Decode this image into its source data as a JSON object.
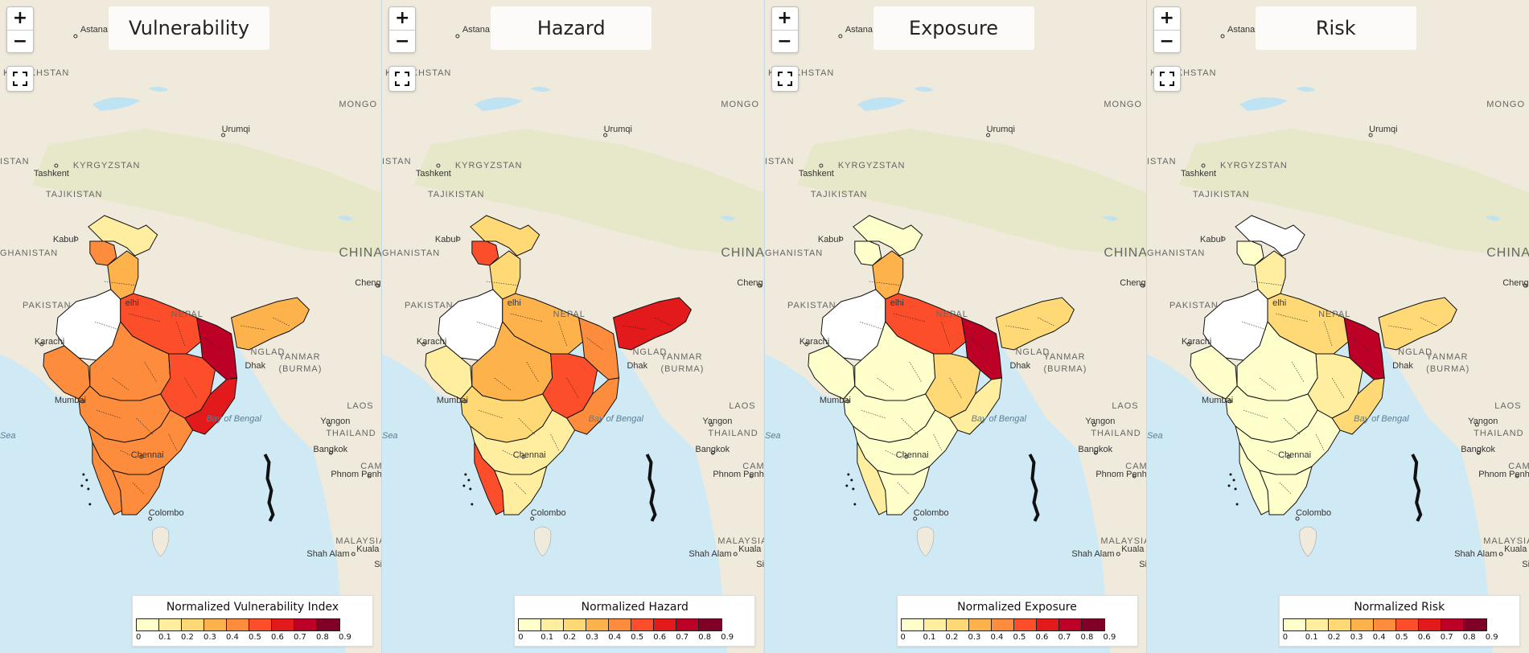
{
  "colors": {
    "land": "#efebd6",
    "land_dark": "#e1e4c8",
    "water": "#cfe9f5",
    "border": "#111111"
  },
  "legend_ticks": [
    "0",
    "0.1",
    "0.2",
    "0.3",
    "0.4",
    "0.5",
    "0.6",
    "0.7",
    "0.8",
    "0.9"
  ],
  "legend_colors": [
    "#ffffcc",
    "#ffeda0",
    "#fed976",
    "#feb24c",
    "#fd8d3c",
    "#fc4e2a",
    "#e31a1c",
    "#bd0026",
    "#800026"
  ],
  "zoom_in_label": "+",
  "zoom_out_label": "−",
  "places": {
    "astana": "Astana",
    "kazakhstan": "KAZAKHSTAN",
    "mongolia": "MONGO",
    "urumqi": "Urumqi",
    "istan": "ISTAN",
    "kyrgyzstan": "KYRGYZSTAN",
    "tashkent": "Tashkent",
    "tajikistan": "TAJIKISTAN",
    "kabul": "Kabul",
    "afghanistan": "GHANISTAN",
    "china": "CHINA",
    "pakistan": "PAKISTAN",
    "chengdu": "Cheng",
    "delhi": "elhi",
    "nepal": "NEPAL",
    "karachi": "Karachi",
    "bangladesh": "NGLAD",
    "dhaka": "Dhak",
    "myanmar1": "YANMAR",
    "myanmar2": "(BURMA)",
    "laos": "LAOS",
    "mumbai": "Mumbai",
    "bay_of_bengal": "Bay of Bengal",
    "yangon": "Yangon",
    "thailand": "THAILAND",
    "sea": "Sea",
    "chennai": "Chennai",
    "bangkok": "Bangkok",
    "cambodia": "CAMB",
    "phnom_penh": "Phnom Penh",
    "colombo": "Colombo",
    "malaysia": "MALAYSIA",
    "shah_alam": "Shah Alam",
    "kuala": "Kuala",
    "si": "Si"
  },
  "panels": [
    {
      "title": "Vulnerability",
      "legend_title": "Normalized Vulnerability Index",
      "regions": {
        "north": 2,
        "kashmir": 5,
        "punjab": 4,
        "rajasthan": 0,
        "gujarat": 5,
        "up": 6,
        "bihar": 8,
        "northeast": 4,
        "mp": 5,
        "maharashtra": 5,
        "east": 6,
        "odisha": 7,
        "south": 5,
        "kerala": 5,
        "tamil": 5
      }
    },
    {
      "title": "Hazard",
      "legend_title": "Normalized Hazard",
      "regions": {
        "north": 3,
        "kashmir": 6,
        "punjab": 3,
        "rajasthan": 0,
        "gujarat": 2,
        "up": 4,
        "bihar": 5,
        "northeast": 7,
        "mp": 4,
        "maharashtra": 3,
        "east": 6,
        "odisha": 5,
        "south": 2,
        "kerala": 6,
        "tamil": 2
      }
    },
    {
      "title": "Exposure",
      "legend_title": "Normalized Exposure",
      "regions": {
        "north": 1,
        "kashmir": 1,
        "punjab": 4,
        "rajasthan": 0,
        "gujarat": 1,
        "up": 6,
        "bihar": 8,
        "northeast": 3,
        "mp": 1,
        "maharashtra": 1,
        "east": 3,
        "odisha": 2,
        "south": 1,
        "kerala": 2,
        "tamil": 1
      }
    },
    {
      "title": "Risk",
      "legend_title": "Normalized Risk",
      "regions": {
        "north": 0,
        "kashmir": 1,
        "punjab": 2,
        "rajasthan": 0,
        "gujarat": 1,
        "up": 3,
        "bihar": 8,
        "northeast": 3,
        "mp": 1,
        "maharashtra": 1,
        "east": 2,
        "odisha": 3,
        "south": 1,
        "kerala": 1,
        "tamil": 1
      }
    }
  ]
}
